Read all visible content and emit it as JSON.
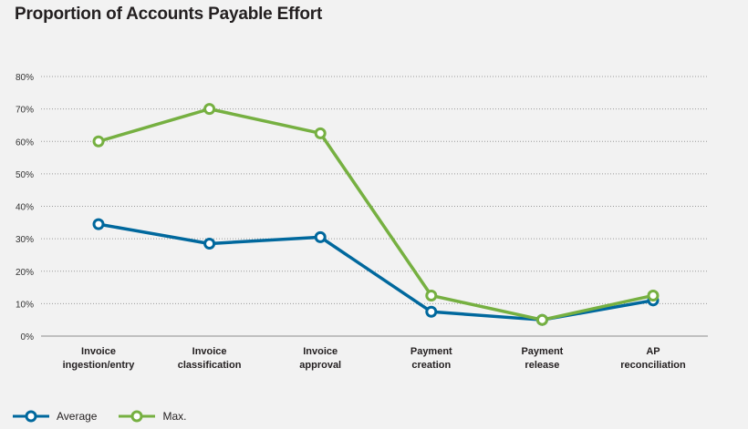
{
  "title": "Proportion of Accounts Payable Effort",
  "chart_data": {
    "type": "line",
    "title": "Proportion of Accounts Payable Effort",
    "xlabel": "",
    "ylabel": "",
    "ylim": [
      0,
      80
    ],
    "yticks": [
      "0%",
      "10%",
      "20%",
      "30%",
      "40%",
      "50%",
      "60%",
      "70%",
      "80%"
    ],
    "grid": true,
    "legend_position": "bottom-left",
    "categories": [
      [
        "Invoice",
        "ingestion/entry"
      ],
      [
        "Invoice",
        "classification"
      ],
      [
        "Invoice",
        "approval"
      ],
      [
        "Payment",
        "creation"
      ],
      [
        "Payment",
        "release"
      ],
      [
        "AP",
        "reconciliation"
      ]
    ],
    "series": [
      {
        "name": "Average",
        "color": "#00689d",
        "values": [
          34.5,
          28.5,
          30.5,
          7.5,
          5,
          11
        ]
      },
      {
        "name": "Max.",
        "color": "#76b041",
        "values": [
          60,
          70,
          62.5,
          12.5,
          5,
          12.5
        ]
      }
    ]
  }
}
